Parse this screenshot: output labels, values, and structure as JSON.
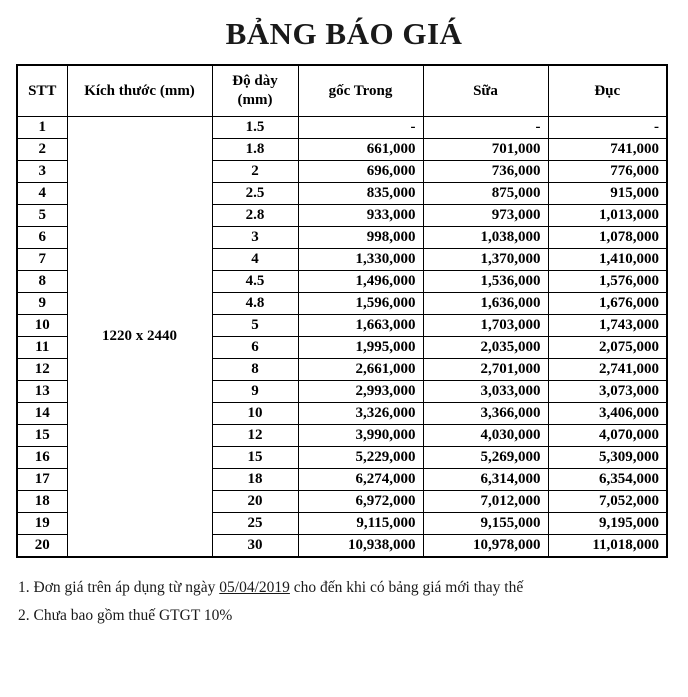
{
  "title": "BẢNG BÁO GIÁ",
  "table": {
    "headers": [
      "STT",
      "Kích thước (mm)",
      "Độ dày (mm)",
      "gốc Trong",
      "Sữa",
      "Đục"
    ],
    "size_label": "1220 x 2440",
    "rows": [
      [
        "1",
        "1.5",
        "-",
        "-",
        "-"
      ],
      [
        "2",
        "1.8",
        "661,000",
        "701,000",
        "741,000"
      ],
      [
        "3",
        "2",
        "696,000",
        "736,000",
        "776,000"
      ],
      [
        "4",
        "2.5",
        "835,000",
        "875,000",
        "915,000"
      ],
      [
        "5",
        "2.8",
        "933,000",
        "973,000",
        "1,013,000"
      ],
      [
        "6",
        "3",
        "998,000",
        "1,038,000",
        "1,078,000"
      ],
      [
        "7",
        "4",
        "1,330,000",
        "1,370,000",
        "1,410,000"
      ],
      [
        "8",
        "4.5",
        "1,496,000",
        "1,536,000",
        "1,576,000"
      ],
      [
        "9",
        "4.8",
        "1,596,000",
        "1,636,000",
        "1,676,000"
      ],
      [
        "10",
        "5",
        "1,663,000",
        "1,703,000",
        "1,743,000"
      ],
      [
        "11",
        "6",
        "1,995,000",
        "2,035,000",
        "2,075,000"
      ],
      [
        "12",
        "8",
        "2,661,000",
        "2,701,000",
        "2,741,000"
      ],
      [
        "13",
        "9",
        "2,993,000",
        "3,033,000",
        "3,073,000"
      ],
      [
        "14",
        "10",
        "3,326,000",
        "3,366,000",
        "3,406,000"
      ],
      [
        "15",
        "12",
        "3,990,000",
        "4,030,000",
        "4,070,000"
      ],
      [
        "16",
        "15",
        "5,229,000",
        "5,269,000",
        "5,309,000"
      ],
      [
        "17",
        "18",
        "6,274,000",
        "6,314,000",
        "6,354,000"
      ],
      [
        "18",
        "20",
        "6,972,000",
        "7,012,000",
        "7,052,000"
      ],
      [
        "19",
        "25",
        "9,115,000",
        "9,155,000",
        "9,195,000"
      ],
      [
        "20",
        "30",
        "10,938,000",
        "10,978,000",
        "11,018,000"
      ]
    ]
  },
  "notes": {
    "note1_prefix": "1. Đơn giá trên áp dụng từ ngày ",
    "note1_date": "05/04/2019",
    "note1_suffix": " cho đến khi có bảng giá mới thay thế",
    "note2": "2. Chưa bao gồm thuế GTGT 10%"
  }
}
